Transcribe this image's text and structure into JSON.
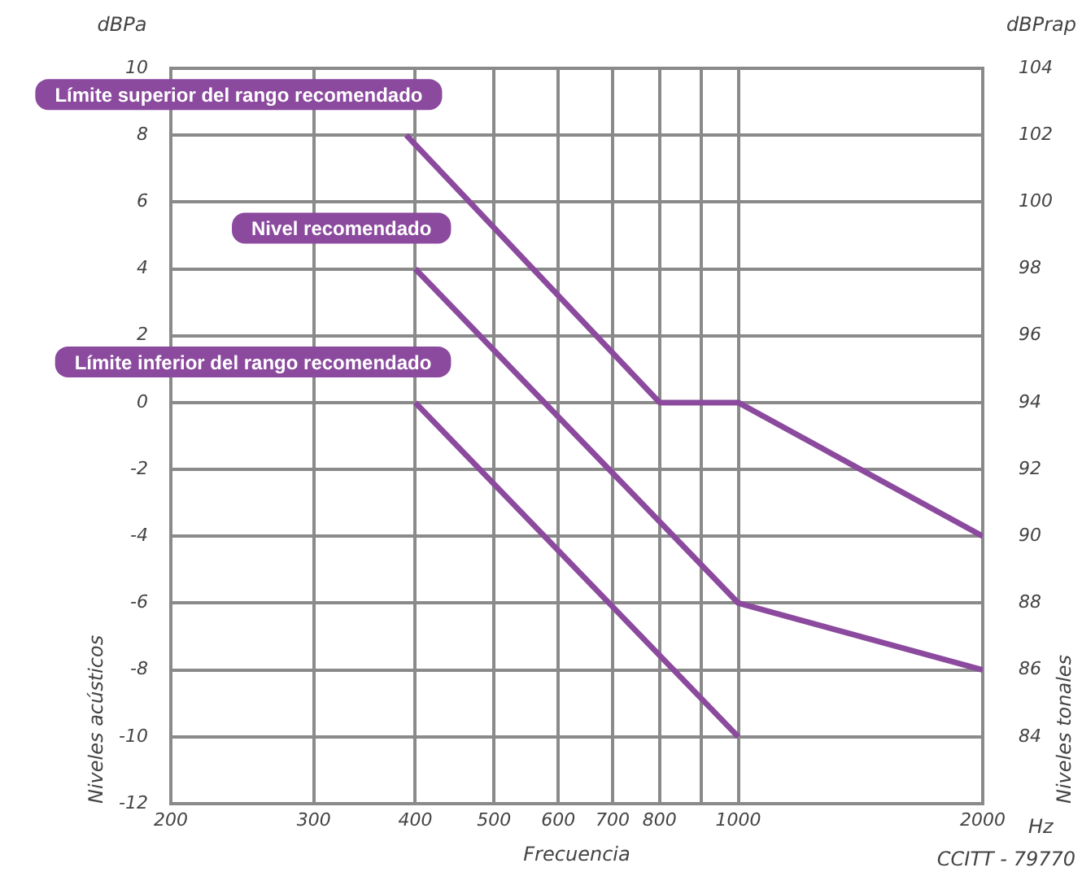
{
  "chart_data": {
    "type": "line",
    "xlabel": "Frecuencia",
    "ylabel": "Niveles acústicos",
    "y2label": "Niveles tonales",
    "annotations": [
      "dBPa",
      "dBPrap",
      "Hz",
      "CCITT - 79770"
    ],
    "log": "x",
    "xlim": [
      200,
      2000
    ],
    "xticks": [
      200,
      300,
      400,
      500,
      600,
      700,
      800,
      {
        "value": 900,
        "label": null
      },
      1000,
      2000
    ],
    "ylim": [
      -12,
      10
    ],
    "yticks": [
      -12,
      -10,
      -8,
      -6,
      -4,
      -2,
      0,
      2,
      4,
      6,
      8,
      10
    ],
    "y2lim": [
      82,
      104
    ],
    "y2ticks": [
      84,
      86,
      88,
      90,
      92,
      94,
      96,
      98,
      100,
      102,
      104
    ],
    "grid": true,
    "legend": false,
    "marker": "none",
    "line_style": "solid",
    "series": [
      {
        "name": "Límite superior del rango recomendado",
        "color": "#8b4a9e",
        "x": [
          390,
          800,
          1000,
          2000
        ],
        "values": [
          8,
          0,
          0,
          -4
        ]
      },
      {
        "name": "Nivel recomendado",
        "color": "#8b4a9e",
        "x": [
          400,
          1000,
          2000
        ],
        "values": [
          4,
          -6,
          -8
        ]
      },
      {
        "name": "Límite inferior del rango recomendado",
        "color": "#8b4a9e",
        "x": [
          400,
          1000
        ],
        "values": [
          0,
          -10
        ]
      }
    ]
  }
}
